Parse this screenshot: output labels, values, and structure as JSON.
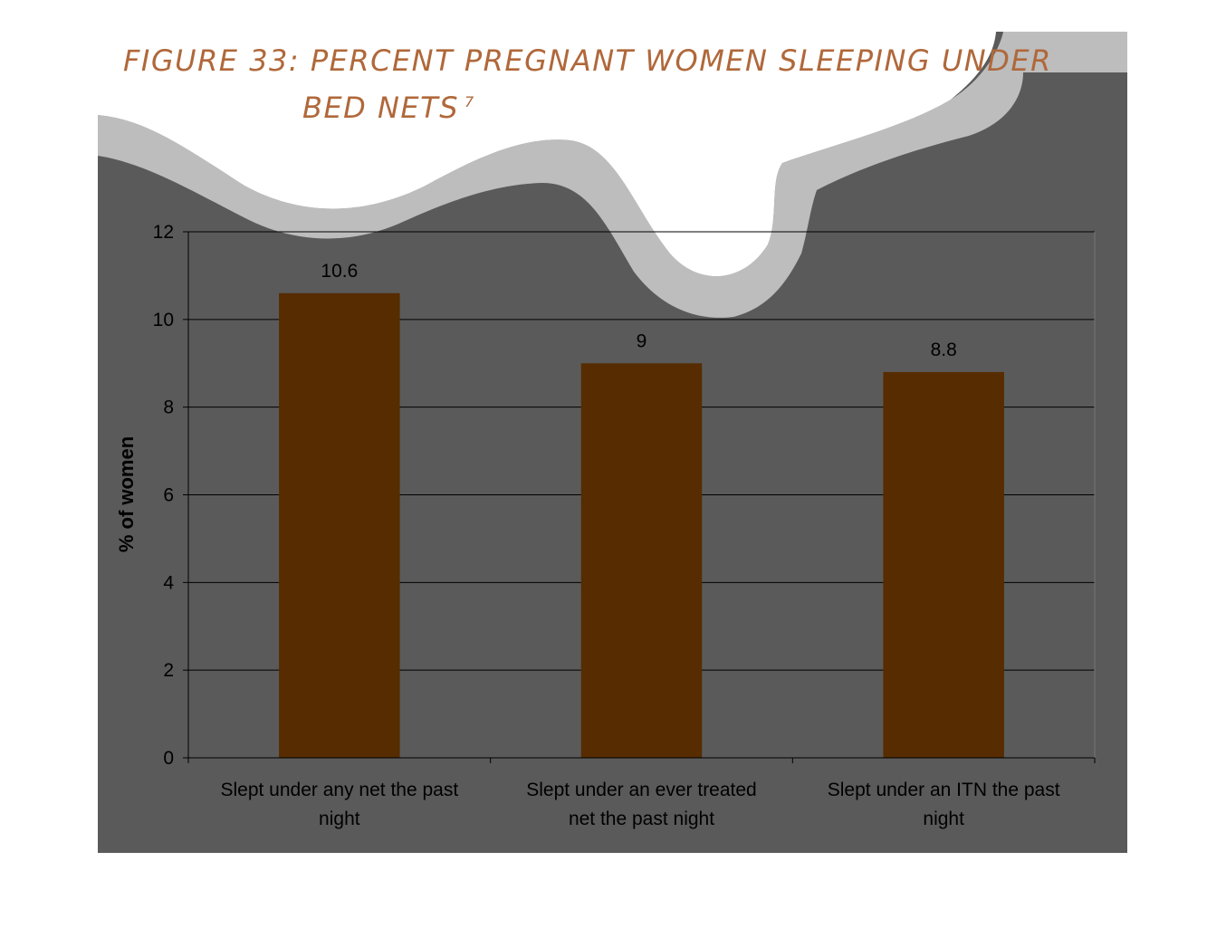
{
  "slide": {
    "title_line_1": "FIGURE 33: PERCENT PREGNANT WOMEN SLEEPING UNDER",
    "title_line_2": "BED NETS",
    "footnote_marker": "7"
  },
  "colors": {
    "panel_background": "#5a5a5a",
    "wave_band": "#bdbdbd",
    "bar_fill": "#562c00",
    "title_text": "#b0683a",
    "gridline": "#000000",
    "text": "#000000"
  },
  "chart_data": {
    "type": "bar",
    "categories": [
      [
        "Slept under any net the past",
        "night"
      ],
      [
        "Slept under an ever treated",
        "net the past night"
      ],
      [
        "Slept under an ITN the past",
        "night"
      ]
    ],
    "values": [
      10.6,
      9,
      8.8
    ],
    "data_labels": [
      "10.6",
      "9",
      "8.8"
    ],
    "ylabel": "% of women",
    "ylim": [
      0,
      12
    ],
    "yticks": [
      0,
      2,
      4,
      6,
      8,
      10,
      12
    ],
    "grid": true,
    "legend": "none"
  }
}
